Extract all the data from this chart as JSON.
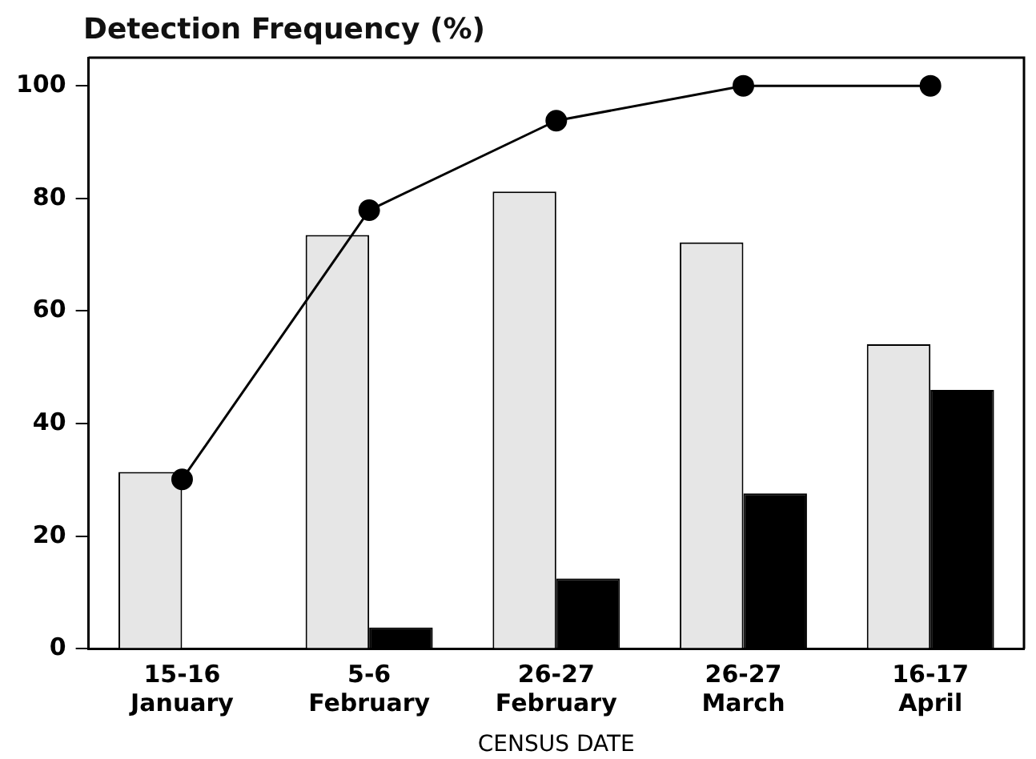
{
  "chart_data": {
    "type": "bar",
    "ylabel": "Detection Frequency (%)",
    "xlabel": "CENSUS DATE",
    "categories": [
      "15-16\nJanuary",
      "5-6\nFebruary",
      "26-27\nFebruary",
      "26-27\nMarch",
      "16-17\nApril"
    ],
    "series": [
      {
        "color": "#e6e6e6",
        "values": [
          31.4,
          73.5,
          81.2,
          72.2,
          54.1
        ]
      },
      {
        "color": "#000000",
        "values": [
          0,
          3.8,
          12.5,
          27.6,
          46.0
        ]
      },
      {
        "type": "line",
        "color": "#000000",
        "values": [
          30.1,
          77.9,
          93.8,
          100,
          100
        ]
      }
    ],
    "ylim": [
      0,
      105
    ],
    "yticks": [
      0,
      20,
      40,
      60,
      80,
      100
    ],
    "grid": false,
    "legend": false,
    "marker": "circle",
    "line_style": "solid"
  }
}
